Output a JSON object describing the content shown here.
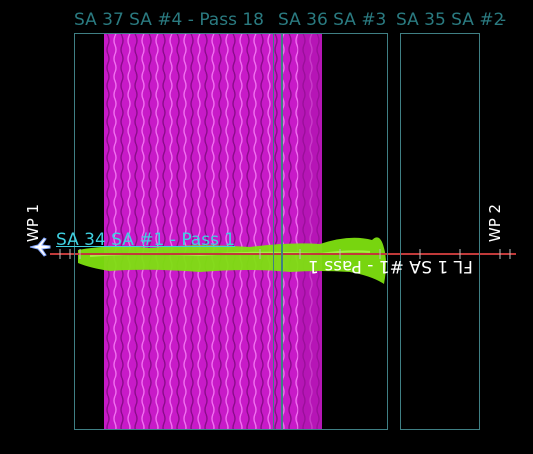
{
  "top_labels": {
    "sa37": "SA 37 SA #4 - Pass 18",
    "sa36": "SA 36 SA #3",
    "sa35": "SA 35 SA #2",
    "tail": "-"
  },
  "left_label": "SA 34 SA #1 - Pass 1",
  "flipped_label": "FL 1 SA #1 - Pass 1",
  "waypoints": {
    "wp1": "WP 1",
    "wp2": "WP 2"
  },
  "colors": {
    "background": "#000000",
    "outline": "#3f7f84",
    "magenta": "#cc1ccc",
    "magenta_light": "#f060f0",
    "green": "#7ee010",
    "track_red": "#c03a3a",
    "label_teal": "#2a7a80",
    "label_cyan": "#3fd0e0"
  },
  "icons": {
    "aircraft": "aircraft-icon"
  }
}
